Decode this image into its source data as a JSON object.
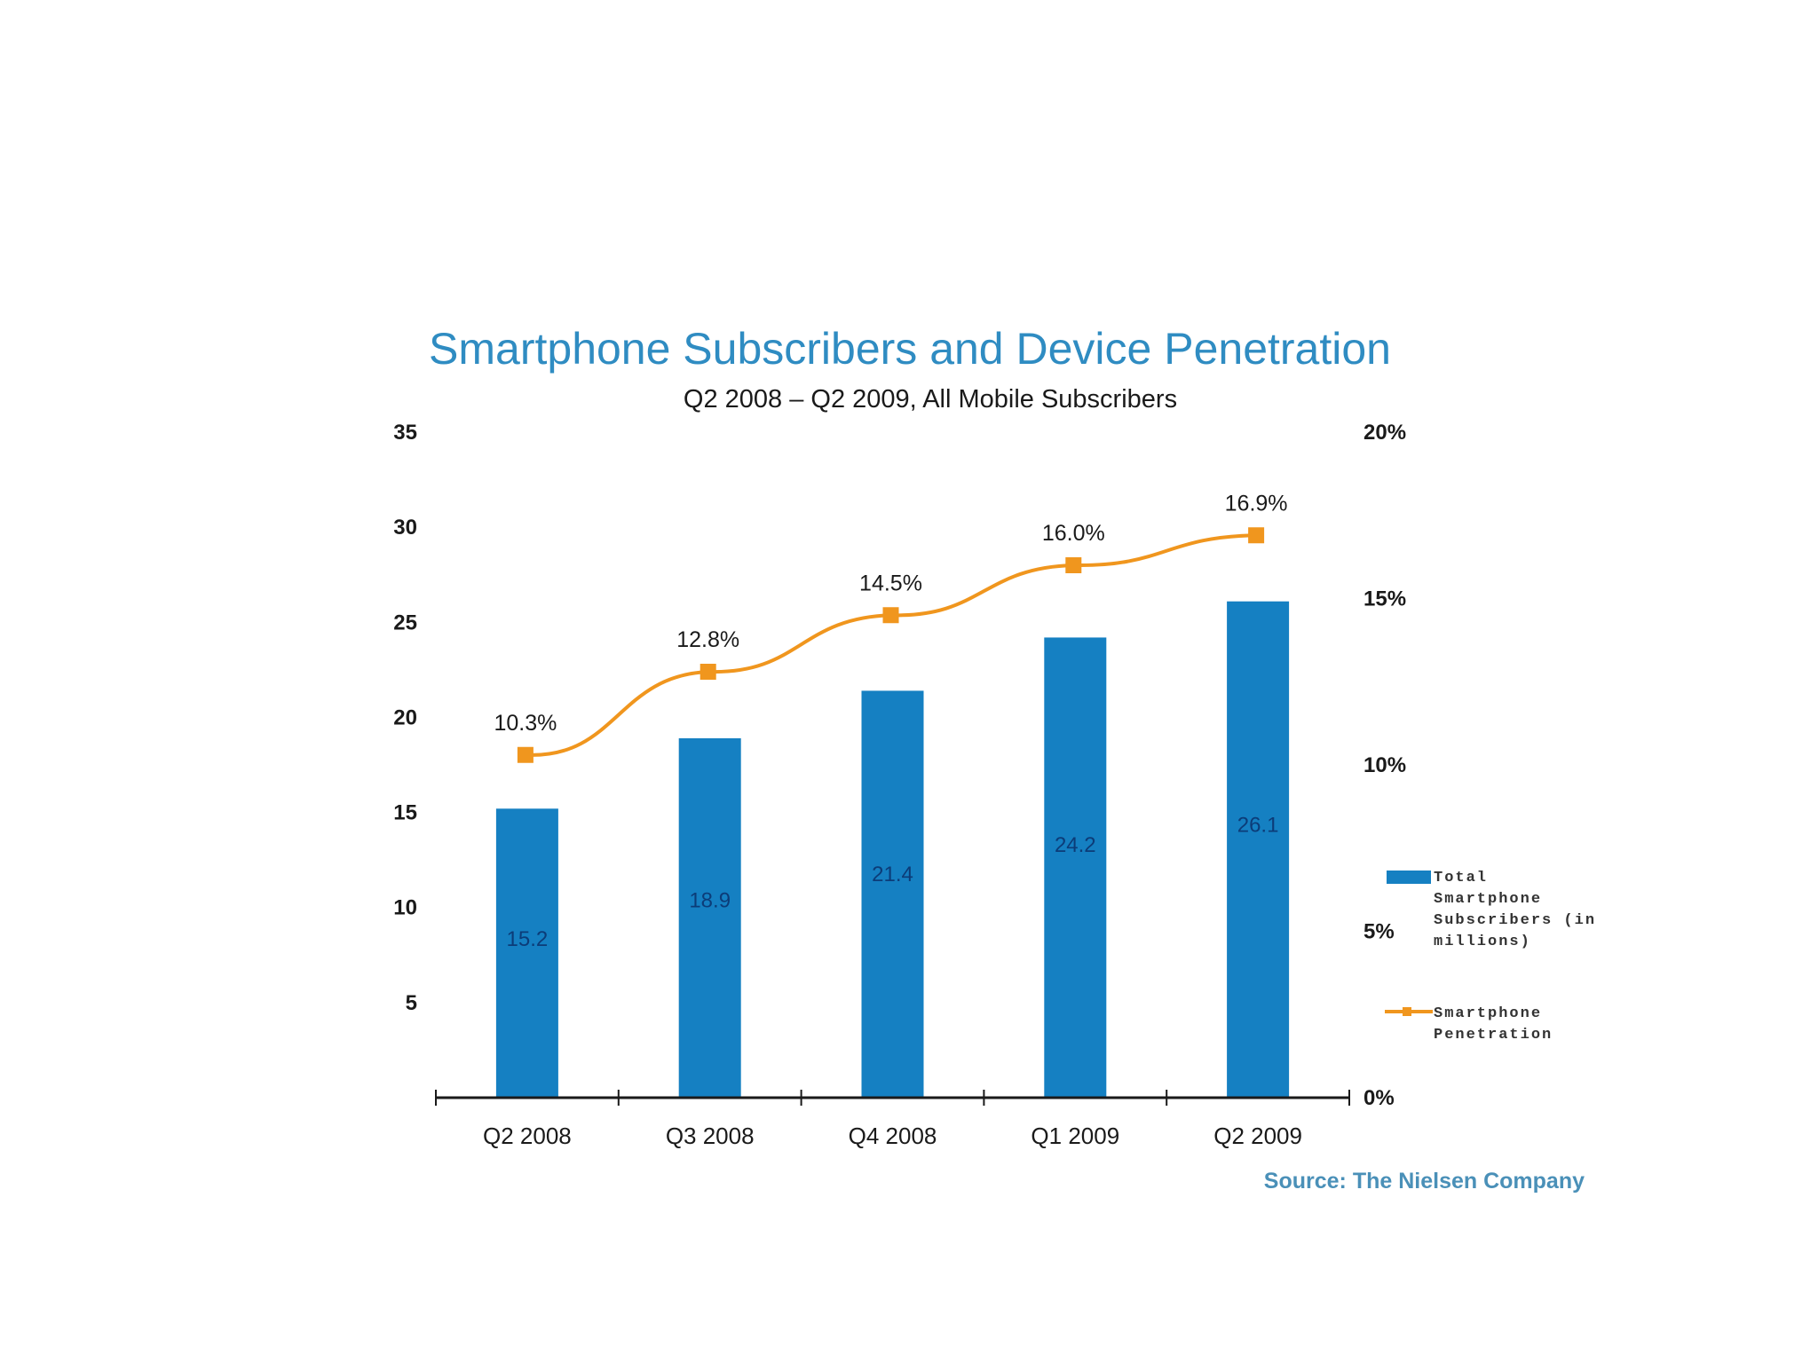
{
  "chart_data": {
    "type": "bar",
    "title": "Smartphone Subscribers and Device Penetration",
    "subtitle": "Q2 2008 – Q2 2009, All Mobile Subscribers",
    "categories": [
      "Q2 2008",
      "Q3 2008",
      "Q4 2008",
      "Q1 2009",
      "Q2 2009"
    ],
    "series": [
      {
        "name": "Total Smartphone Subscribers (in millions)",
        "type": "bar",
        "axis": "left",
        "color": "#1580c2",
        "values": [
          15.2,
          18.9,
          21.4,
          24.2,
          26.1
        ],
        "labels": [
          "15.2",
          "18.9",
          "21.4",
          "24.2",
          "26.1"
        ]
      },
      {
        "name": "Smartphone Penetration",
        "type": "line",
        "axis": "right",
        "color": "#f0961e",
        "values": [
          10.3,
          12.8,
          14.5,
          16.0,
          16.9
        ],
        "labels": [
          "10.3%",
          "12.8%",
          "14.5%",
          "16.0%",
          "16.9%"
        ]
      }
    ],
    "ylim": [
      0,
      35
    ],
    "y_ticks": [
      5,
      10,
      15,
      20,
      25,
      30,
      35
    ],
    "y_tick_labels": [
      "5",
      "10",
      "15",
      "20",
      "25",
      "30",
      "35"
    ],
    "y2lim": [
      0,
      20
    ],
    "y2_ticks": [
      0,
      5,
      10,
      15,
      20
    ],
    "y2_tick_labels": [
      "0%",
      "5%",
      "10%",
      "15%",
      "20%"
    ],
    "xlabel": "",
    "ylabel": "",
    "y2label": "",
    "grid": false,
    "legend": {
      "placement": "right",
      "entries": [
        {
          "label_lines": [
            "Total",
            "Smartphone",
            "Subscribers (in",
            "millions)"
          ],
          "marker": "bar"
        },
        {
          "label_lines": [
            "Smartphone",
            "Penetration"
          ],
          "marker": "line"
        }
      ]
    },
    "source": "Source: The Nielsen Company"
  }
}
